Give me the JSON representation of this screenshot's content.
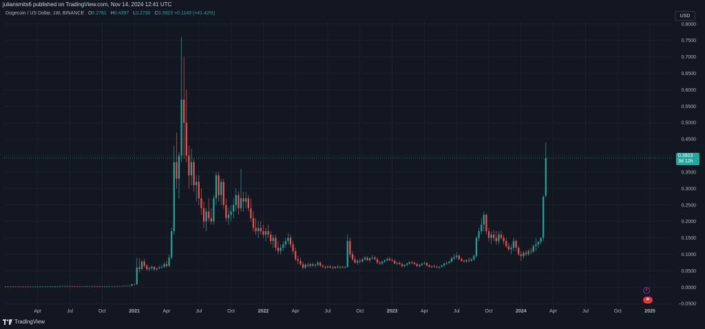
{
  "header": {
    "text": "juliansmits6 published on TradingView.com, Nov 14, 2024 12:41 UTC"
  },
  "legend": {
    "symbol": "Dogecoin / US Dollar, 1W, BINANCE",
    "o_label": "O",
    "o": "0.2781",
    "h_label": "H",
    "h": "0.4397",
    "l_label": "L",
    "l": "0.2730",
    "c_label": "C",
    "c": "0.3923",
    "change": "+0.1149 (+41.42%)"
  },
  "currency_button": "USD",
  "price_tag": {
    "price": "0.3923",
    "countdown": "3d 12h"
  },
  "footer": {
    "brand": "TradingView"
  },
  "badges": {
    "event_icon": "lightning-icon",
    "flag_icon": "flag-icon"
  },
  "colors": {
    "up": "#26a69a",
    "down": "#ef5350",
    "bg": "#131722",
    "grid": "#1e222d"
  },
  "chart_data": {
    "type": "candlestick",
    "symbol": "DOGE/USD",
    "interval": "1W",
    "ylim": [
      -0.06,
      0.81
    ],
    "y_ticks": [
      "0.8000",
      "0.7500",
      "0.7000",
      "0.6500",
      "0.6000",
      "0.5500",
      "0.5000",
      "0.4500",
      "0.4000",
      "0.3500",
      "0.3000",
      "0.2500",
      "0.2000",
      "0.1500",
      "0.1000",
      "0.0500",
      "0.0000",
      "−0.0500"
    ],
    "y_tick_values": [
      0.8,
      0.75,
      0.7,
      0.65,
      0.6,
      0.55,
      0.5,
      0.45,
      0.4,
      0.35,
      0.3,
      0.25,
      0.2,
      0.15,
      0.1,
      0.05,
      0.0,
      -0.05
    ],
    "x_ticks": [
      "Apr",
      "Jul",
      "Oct",
      "2021",
      "Apr",
      "Jul",
      "Oct",
      "2022",
      "Apr",
      "Jul",
      "Oct",
      "2023",
      "Apr",
      "Jul",
      "Oct",
      "2024",
      "Apr",
      "Jul",
      "Oct",
      "2025"
    ],
    "x_tick_index": [
      13,
      26,
      39,
      52,
      65,
      78,
      91,
      104,
      117,
      130,
      143,
      156,
      169,
      182,
      195,
      208,
      221,
      234,
      247,
      260
    ],
    "last_price": 0.3923,
    "candles": [
      [
        0.0021,
        0.0023,
        0.0019,
        0.0022
      ],
      [
        0.0022,
        0.0024,
        0.002,
        0.0021
      ],
      [
        0.0021,
        0.0022,
        0.0019,
        0.002
      ],
      [
        0.002,
        0.0022,
        0.0018,
        0.0021
      ],
      [
        0.0021,
        0.0023,
        0.0019,
        0.002
      ],
      [
        0.002,
        0.0022,
        0.0018,
        0.0021
      ],
      [
        0.0021,
        0.0022,
        0.0019,
        0.002
      ],
      [
        0.002,
        0.0021,
        0.0017,
        0.0018
      ],
      [
        0.0018,
        0.002,
        0.0016,
        0.0019
      ],
      [
        0.0019,
        0.0021,
        0.0017,
        0.0018
      ],
      [
        0.0018,
        0.0019,
        0.0012,
        0.0015
      ],
      [
        0.0015,
        0.0018,
        0.0013,
        0.0017
      ],
      [
        0.0017,
        0.0019,
        0.0016,
        0.0018
      ],
      [
        0.0018,
        0.002,
        0.0017,
        0.0019
      ],
      [
        0.0019,
        0.0021,
        0.0018,
        0.002
      ],
      [
        0.002,
        0.0022,
        0.0019,
        0.0021
      ],
      [
        0.0021,
        0.0023,
        0.002,
        0.0022
      ],
      [
        0.0022,
        0.0024,
        0.0021,
        0.0023
      ],
      [
        0.0023,
        0.0025,
        0.0022,
        0.0024
      ],
      [
        0.0024,
        0.0026,
        0.0022,
        0.0025
      ],
      [
        0.0025,
        0.0027,
        0.0023,
        0.0026
      ],
      [
        0.0026,
        0.0028,
        0.0024,
        0.0027
      ],
      [
        0.0027,
        0.0035,
        0.0026,
        0.0033
      ],
      [
        0.0033,
        0.0039,
        0.003,
        0.0034
      ],
      [
        0.0034,
        0.0036,
        0.0031,
        0.0032
      ],
      [
        0.0032,
        0.0034,
        0.003,
        0.0033
      ],
      [
        0.0033,
        0.0035,
        0.0031,
        0.0032
      ],
      [
        0.0032,
        0.0034,
        0.003,
        0.0031
      ],
      [
        0.0031,
        0.0033,
        0.0029,
        0.003
      ],
      [
        0.003,
        0.0032,
        0.0028,
        0.0029
      ],
      [
        0.0029,
        0.0031,
        0.0027,
        0.0028
      ],
      [
        0.0028,
        0.0031,
        0.0027,
        0.003
      ],
      [
        0.003,
        0.0032,
        0.0029,
        0.0031
      ],
      [
        0.0031,
        0.0033,
        0.003,
        0.0032
      ],
      [
        0.0032,
        0.0034,
        0.0031,
        0.0033
      ],
      [
        0.0033,
        0.0034,
        0.003,
        0.0031
      ],
      [
        0.0031,
        0.0033,
        0.0029,
        0.003
      ],
      [
        0.003,
        0.0031,
        0.0028,
        0.0029
      ],
      [
        0.0029,
        0.003,
        0.0026,
        0.0027
      ],
      [
        0.0027,
        0.0029,
        0.0026,
        0.0028
      ],
      [
        0.0028,
        0.003,
        0.0027,
        0.0029
      ],
      [
        0.0029,
        0.0031,
        0.0028,
        0.003
      ],
      [
        0.003,
        0.0032,
        0.0029,
        0.0031
      ],
      [
        0.0031,
        0.0034,
        0.003,
        0.0033
      ],
      [
        0.0033,
        0.0036,
        0.0032,
        0.0035
      ],
      [
        0.0035,
        0.0037,
        0.0033,
        0.0034
      ],
      [
        0.0034,
        0.0036,
        0.0032,
        0.0035
      ],
      [
        0.0035,
        0.004,
        0.0034,
        0.0038
      ],
      [
        0.0038,
        0.0046,
        0.0036,
        0.0044
      ],
      [
        0.0044,
        0.0048,
        0.004,
        0.0042
      ],
      [
        0.0042,
        0.0046,
        0.0039,
        0.0045
      ],
      [
        0.0045,
        0.0095,
        0.0044,
        0.009
      ],
      [
        0.009,
        0.01,
        0.007,
        0.0085
      ],
      [
        0.0085,
        0.09,
        0.008,
        0.06
      ],
      [
        0.06,
        0.088,
        0.045,
        0.055
      ],
      [
        0.055,
        0.082,
        0.052,
        0.078
      ],
      [
        0.078,
        0.085,
        0.06,
        0.065
      ],
      [
        0.065,
        0.07,
        0.05,
        0.055
      ],
      [
        0.055,
        0.062,
        0.048,
        0.058
      ],
      [
        0.058,
        0.066,
        0.052,
        0.062
      ],
      [
        0.062,
        0.064,
        0.05,
        0.054
      ],
      [
        0.054,
        0.06,
        0.05,
        0.057
      ],
      [
        0.057,
        0.065,
        0.055,
        0.06
      ],
      [
        0.06,
        0.068,
        0.056,
        0.062
      ],
      [
        0.062,
        0.075,
        0.058,
        0.07
      ],
      [
        0.07,
        0.08,
        0.06,
        0.065
      ],
      [
        0.065,
        0.1,
        0.062,
        0.09
      ],
      [
        0.09,
        0.18,
        0.085,
        0.17
      ],
      [
        0.17,
        0.43,
        0.16,
        0.38
      ],
      [
        0.38,
        0.47,
        0.3,
        0.33
      ],
      [
        0.33,
        0.41,
        0.27,
        0.4
      ],
      [
        0.4,
        0.76,
        0.38,
        0.57
      ],
      [
        0.57,
        0.7,
        0.39,
        0.5
      ],
      [
        0.5,
        0.6,
        0.38,
        0.4
      ],
      [
        0.4,
        0.43,
        0.3,
        0.34
      ],
      [
        0.34,
        0.42,
        0.31,
        0.38
      ],
      [
        0.38,
        0.39,
        0.29,
        0.31
      ],
      [
        0.31,
        0.34,
        0.26,
        0.32
      ],
      [
        0.32,
        0.34,
        0.25,
        0.27
      ],
      [
        0.27,
        0.3,
        0.22,
        0.24
      ],
      [
        0.24,
        0.26,
        0.18,
        0.2
      ],
      [
        0.2,
        0.24,
        0.17,
        0.23
      ],
      [
        0.23,
        0.27,
        0.2,
        0.21
      ],
      [
        0.21,
        0.24,
        0.19,
        0.2
      ],
      [
        0.2,
        0.28,
        0.19,
        0.27
      ],
      [
        0.27,
        0.35,
        0.25,
        0.34
      ],
      [
        0.34,
        0.35,
        0.26,
        0.28
      ],
      [
        0.28,
        0.33,
        0.25,
        0.32
      ],
      [
        0.32,
        0.33,
        0.24,
        0.25
      ],
      [
        0.25,
        0.27,
        0.2,
        0.21
      ],
      [
        0.21,
        0.24,
        0.19,
        0.22
      ],
      [
        0.22,
        0.25,
        0.2,
        0.23
      ],
      [
        0.23,
        0.27,
        0.21,
        0.25
      ],
      [
        0.25,
        0.3,
        0.23,
        0.28
      ],
      [
        0.28,
        0.29,
        0.22,
        0.24
      ],
      [
        0.24,
        0.36,
        0.23,
        0.27
      ],
      [
        0.27,
        0.29,
        0.23,
        0.26
      ],
      [
        0.26,
        0.29,
        0.24,
        0.27
      ],
      [
        0.27,
        0.28,
        0.23,
        0.24
      ],
      [
        0.24,
        0.27,
        0.2,
        0.21
      ],
      [
        0.21,
        0.23,
        0.17,
        0.18
      ],
      [
        0.18,
        0.21,
        0.16,
        0.17
      ],
      [
        0.17,
        0.2,
        0.15,
        0.18
      ],
      [
        0.18,
        0.2,
        0.16,
        0.17
      ],
      [
        0.17,
        0.19,
        0.15,
        0.16
      ],
      [
        0.16,
        0.18,
        0.14,
        0.17
      ],
      [
        0.17,
        0.19,
        0.15,
        0.16
      ],
      [
        0.16,
        0.17,
        0.13,
        0.14
      ],
      [
        0.14,
        0.16,
        0.12,
        0.15
      ],
      [
        0.15,
        0.16,
        0.11,
        0.12
      ],
      [
        0.12,
        0.14,
        0.1,
        0.11
      ],
      [
        0.11,
        0.13,
        0.1,
        0.12
      ],
      [
        0.12,
        0.14,
        0.11,
        0.13
      ],
      [
        0.13,
        0.15,
        0.12,
        0.14
      ],
      [
        0.14,
        0.165,
        0.13,
        0.15
      ],
      [
        0.15,
        0.16,
        0.12,
        0.13
      ],
      [
        0.13,
        0.14,
        0.1,
        0.11
      ],
      [
        0.11,
        0.12,
        0.08,
        0.085
      ],
      [
        0.085,
        0.095,
        0.07,
        0.08
      ],
      [
        0.08,
        0.09,
        0.065,
        0.07
      ],
      [
        0.07,
        0.078,
        0.055,
        0.06
      ],
      [
        0.06,
        0.072,
        0.055,
        0.068
      ],
      [
        0.068,
        0.075,
        0.06,
        0.065
      ],
      [
        0.065,
        0.074,
        0.06,
        0.07
      ],
      [
        0.07,
        0.075,
        0.062,
        0.066
      ],
      [
        0.066,
        0.072,
        0.06,
        0.068
      ],
      [
        0.068,
        0.08,
        0.064,
        0.075
      ],
      [
        0.075,
        0.078,
        0.062,
        0.065
      ],
      [
        0.065,
        0.07,
        0.058,
        0.062
      ],
      [
        0.062,
        0.066,
        0.055,
        0.06
      ],
      [
        0.06,
        0.066,
        0.057,
        0.063
      ],
      [
        0.063,
        0.068,
        0.058,
        0.06
      ],
      [
        0.06,
        0.064,
        0.055,
        0.058
      ],
      [
        0.058,
        0.064,
        0.056,
        0.062
      ],
      [
        0.062,
        0.068,
        0.058,
        0.06
      ],
      [
        0.06,
        0.065,
        0.056,
        0.062
      ],
      [
        0.062,
        0.065,
        0.058,
        0.06
      ],
      [
        0.06,
        0.064,
        0.057,
        0.061
      ],
      [
        0.061,
        0.16,
        0.06,
        0.14
      ],
      [
        0.14,
        0.15,
        0.09,
        0.1
      ],
      [
        0.1,
        0.11,
        0.08,
        0.085
      ],
      [
        0.085,
        0.095,
        0.072,
        0.075
      ],
      [
        0.075,
        0.085,
        0.068,
        0.08
      ],
      [
        0.08,
        0.088,
        0.072,
        0.078
      ],
      [
        0.078,
        0.09,
        0.074,
        0.085
      ],
      [
        0.085,
        0.095,
        0.08,
        0.09
      ],
      [
        0.09,
        0.094,
        0.08,
        0.082
      ],
      [
        0.082,
        0.09,
        0.075,
        0.088
      ],
      [
        0.088,
        0.098,
        0.084,
        0.09
      ],
      [
        0.09,
        0.095,
        0.082,
        0.085
      ],
      [
        0.085,
        0.09,
        0.07,
        0.075
      ],
      [
        0.075,
        0.08,
        0.068,
        0.072
      ],
      [
        0.072,
        0.08,
        0.068,
        0.078
      ],
      [
        0.078,
        0.085,
        0.074,
        0.082
      ],
      [
        0.082,
        0.09,
        0.078,
        0.086
      ],
      [
        0.086,
        0.092,
        0.08,
        0.082
      ],
      [
        0.082,
        0.088,
        0.076,
        0.08
      ],
      [
        0.08,
        0.084,
        0.07,
        0.072
      ],
      [
        0.072,
        0.078,
        0.066,
        0.074
      ],
      [
        0.074,
        0.078,
        0.068,
        0.07
      ],
      [
        0.07,
        0.074,
        0.06,
        0.064
      ],
      [
        0.064,
        0.07,
        0.06,
        0.068
      ],
      [
        0.068,
        0.074,
        0.064,
        0.072
      ],
      [
        0.072,
        0.08,
        0.068,
        0.076
      ],
      [
        0.076,
        0.08,
        0.07,
        0.074
      ],
      [
        0.074,
        0.078,
        0.068,
        0.07
      ],
      [
        0.07,
        0.074,
        0.062,
        0.064
      ],
      [
        0.064,
        0.07,
        0.06,
        0.068
      ],
      [
        0.068,
        0.074,
        0.064,
        0.072
      ],
      [
        0.072,
        0.078,
        0.068,
        0.074
      ],
      [
        0.074,
        0.076,
        0.064,
        0.066
      ],
      [
        0.066,
        0.07,
        0.06,
        0.062
      ],
      [
        0.062,
        0.066,
        0.058,
        0.064
      ],
      [
        0.064,
        0.068,
        0.06,
        0.062
      ],
      [
        0.062,
        0.066,
        0.058,
        0.06
      ],
      [
        0.06,
        0.064,
        0.056,
        0.062
      ],
      [
        0.062,
        0.068,
        0.06,
        0.066
      ],
      [
        0.066,
        0.074,
        0.062,
        0.072
      ],
      [
        0.072,
        0.078,
        0.068,
        0.074
      ],
      [
        0.074,
        0.08,
        0.07,
        0.078
      ],
      [
        0.078,
        0.092,
        0.074,
        0.088
      ],
      [
        0.088,
        0.1,
        0.082,
        0.092
      ],
      [
        0.092,
        0.106,
        0.086,
        0.096
      ],
      [
        0.096,
        0.1,
        0.082,
        0.086
      ],
      [
        0.086,
        0.09,
        0.078,
        0.08
      ],
      [
        0.08,
        0.084,
        0.074,
        0.078
      ],
      [
        0.078,
        0.086,
        0.074,
        0.082
      ],
      [
        0.082,
        0.09,
        0.076,
        0.08
      ],
      [
        0.08,
        0.09,
        0.078,
        0.084
      ],
      [
        0.084,
        0.1,
        0.08,
        0.095
      ],
      [
        0.095,
        0.155,
        0.09,
        0.15
      ],
      [
        0.15,
        0.18,
        0.14,
        0.17
      ],
      [
        0.17,
        0.21,
        0.16,
        0.19
      ],
      [
        0.19,
        0.23,
        0.17,
        0.22
      ],
      [
        0.22,
        0.225,
        0.16,
        0.17
      ],
      [
        0.17,
        0.18,
        0.14,
        0.15
      ],
      [
        0.15,
        0.17,
        0.13,
        0.16
      ],
      [
        0.16,
        0.175,
        0.14,
        0.15
      ],
      [
        0.15,
        0.17,
        0.13,
        0.14
      ],
      [
        0.14,
        0.17,
        0.13,
        0.16
      ],
      [
        0.16,
        0.172,
        0.145,
        0.15
      ],
      [
        0.15,
        0.158,
        0.13,
        0.14
      ],
      [
        0.14,
        0.15,
        0.12,
        0.125
      ],
      [
        0.125,
        0.135,
        0.11,
        0.115
      ],
      [
        0.115,
        0.13,
        0.1,
        0.12
      ],
      [
        0.12,
        0.15,
        0.11,
        0.14
      ],
      [
        0.14,
        0.145,
        0.11,
        0.12
      ],
      [
        0.12,
        0.125,
        0.095,
        0.1
      ],
      [
        0.1,
        0.11,
        0.08,
        0.095
      ],
      [
        0.095,
        0.11,
        0.088,
        0.105
      ],
      [
        0.105,
        0.112,
        0.095,
        0.1
      ],
      [
        0.1,
        0.115,
        0.096,
        0.11
      ],
      [
        0.11,
        0.12,
        0.1,
        0.108
      ],
      [
        0.108,
        0.13,
        0.104,
        0.125
      ],
      [
        0.125,
        0.15,
        0.11,
        0.13
      ],
      [
        0.13,
        0.14,
        0.12,
        0.138
      ],
      [
        0.138,
        0.152,
        0.13,
        0.15
      ],
      [
        0.15,
        0.28,
        0.14,
        0.275
      ],
      [
        0.2781,
        0.4397,
        0.273,
        0.3923
      ]
    ]
  }
}
